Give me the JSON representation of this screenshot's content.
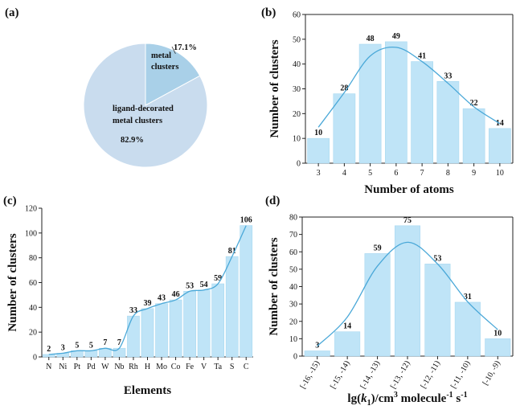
{
  "colors": {
    "bar": "#bfe4f7",
    "bar_stroke": "#a8d8f0",
    "curve": "#4aa8d8",
    "pie_small": "#a9d0e8",
    "pie_large": "#c9dcee",
    "axis": "#222222"
  },
  "chart_data": [
    {
      "id": "a",
      "panel_label": "(a)",
      "type": "pie",
      "slices": [
        {
          "label_lines": [
            "metal",
            "clusters"
          ],
          "value": 17.1,
          "pct_label": "17.1%"
        },
        {
          "label_lines": [
            "ligand-decorated",
            "metal clusters"
          ],
          "value": 82.9,
          "pct_label": "82.9%"
        }
      ]
    },
    {
      "id": "b",
      "panel_label": "(b)",
      "type": "bar",
      "categories": [
        "3",
        "4",
        "5",
        "6",
        "7",
        "8",
        "9",
        "10"
      ],
      "values": [
        10,
        28,
        48,
        49,
        41,
        33,
        22,
        14
      ],
      "xlabel": "Number of atoms",
      "ylabel": "Number of clusters",
      "ylim": [
        0,
        60
      ],
      "yticks": [
        0,
        10,
        20,
        30,
        40,
        50,
        60
      ],
      "fit_curve": true
    },
    {
      "id": "c",
      "panel_label": "(c)",
      "type": "bar",
      "categories": [
        "N",
        "Ni",
        "Pt",
        "Pd",
        "W",
        "Nb",
        "Rh",
        "H",
        "Mo",
        "Co",
        "Fe",
        "V",
        "Ta",
        "S",
        "C"
      ],
      "values": [
        2,
        3,
        5,
        5,
        7,
        7,
        33,
        39,
        43,
        46,
        53,
        54,
        59,
        81,
        106
      ],
      "xlabel": "Elements",
      "ylabel": "Number of clusters",
      "ylim": [
        0,
        120
      ],
      "yticks": [
        0,
        20,
        40,
        60,
        80,
        100,
        120
      ],
      "fit_curve": true
    },
    {
      "id": "d",
      "panel_label": "(d)",
      "type": "bar",
      "categories": [
        "[-16, -15)",
        "[-15, -14)",
        "[-14, -13)",
        "[-13, -12)",
        "[-12, -11)",
        "[-11, -10)",
        "[-10, -9)"
      ],
      "values": [
        3,
        14,
        59,
        75,
        53,
        31,
        10
      ],
      "xlabel_parts": [
        "lg(",
        "k",
        "1",
        ")/cm",
        "3",
        " molecule",
        "-1",
        " s",
        "-1"
      ],
      "ylabel": "Number of clusters",
      "ylim": [
        0,
        80
      ],
      "yticks": [
        0,
        10,
        20,
        30,
        40,
        50,
        60,
        70,
        80
      ],
      "fit_curve": true
    }
  ]
}
